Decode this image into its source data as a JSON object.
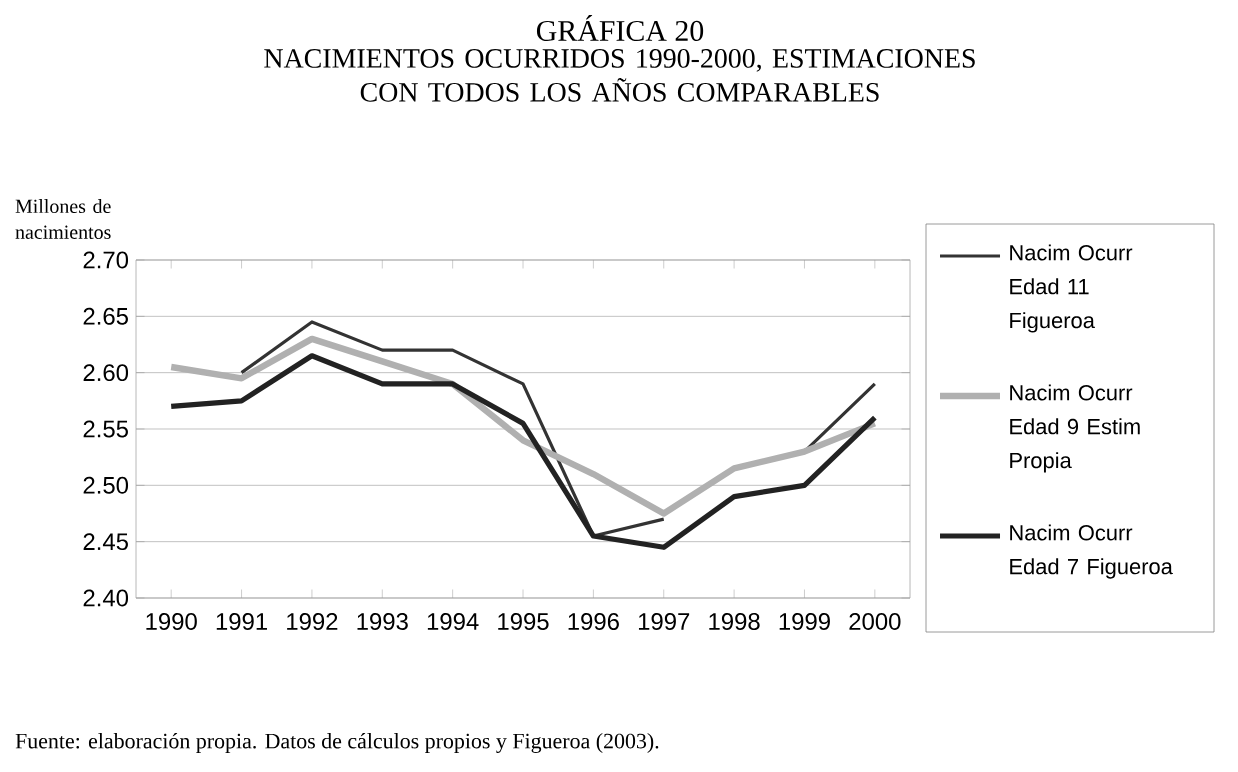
{
  "chart_data": {
    "type": "line",
    "title": "GRÁFICA 20",
    "subtitle": "NACIMIENTOS OCURRIDOS 1990-2000, ESTIMACIONES CON TODOS LOS AÑOS COMPARABLES",
    "ylabel": "Millones de nacimientos",
    "categories": [
      "1990",
      "1991",
      "1992",
      "1993",
      "1994",
      "1995",
      "1996",
      "1997",
      "1998",
      "1999",
      "2000"
    ],
    "series": [
      {
        "name": "Nacim Ocurr Edad 11 Figueroa",
        "color": "#333333",
        "values": [
          null,
          2.6,
          2.645,
          2.62,
          2.62,
          2.59,
          2.455,
          2.47,
          null,
          2.53,
          2.59
        ]
      },
      {
        "name": "Nacim Ocurr Edad 9 Estim Propia",
        "color": "#b0b0b0",
        "values": [
          2.605,
          2.595,
          2.63,
          2.61,
          2.59,
          2.54,
          2.51,
          2.475,
          2.515,
          2.53,
          2.555
        ]
      },
      {
        "name": "Nacim Ocurr Edad 7 Figueroa",
        "color": "#222222",
        "values": [
          2.57,
          2.575,
          2.615,
          2.59,
          2.59,
          2.555,
          2.455,
          2.445,
          2.49,
          2.5,
          2.56
        ]
      }
    ],
    "ylim": [
      2.4,
      2.7
    ],
    "yticks": [
      {
        "value": 2.4,
        "label": "2.40"
      },
      {
        "value": 2.45,
        "label": "2.45"
      },
      {
        "value": 2.5,
        "label": "2.50"
      },
      {
        "value": 2.55,
        "label": "2.55"
      },
      {
        "value": 2.6,
        "label": "2.60"
      },
      {
        "value": 2.65,
        "label": "2.65"
      },
      {
        "value": 2.7,
        "label": "2.70"
      }
    ],
    "grid": "y",
    "legend": "right",
    "marker": "none",
    "line_style": "solid",
    "annotations": [
      "Fuente: elaboración propia. Datos de cálculos propios y Figueroa (2003)."
    ]
  }
}
